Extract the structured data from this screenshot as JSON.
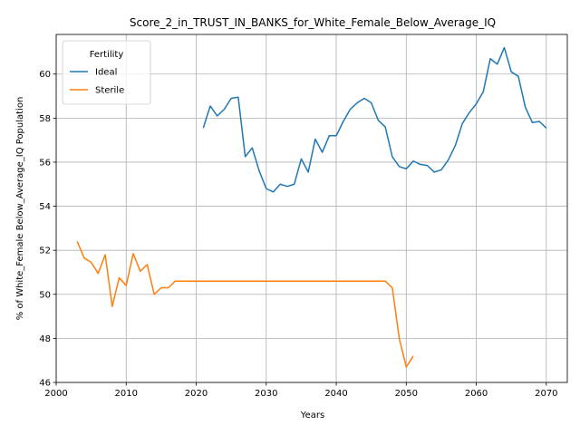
{
  "chart_data": {
    "type": "line",
    "title": "Score_2_in_TRUST_IN_BANKS_for_White_Female_Below_Average_IQ",
    "xlabel": "Years",
    "ylabel": "% of White_Female Below_Average_IQ Population",
    "xlim": [
      2000,
      2073
    ],
    "ylim": [
      46,
      61.8
    ],
    "xticks": [
      2000,
      2010,
      2020,
      2030,
      2040,
      2050,
      2060,
      2070
    ],
    "yticks": [
      46,
      48,
      50,
      52,
      54,
      56,
      58,
      60
    ],
    "grid": true,
    "legend": {
      "title": "Fertility",
      "placement": "upper-left"
    },
    "series": [
      {
        "name": "Ideal",
        "color": "#1f77b4",
        "x": [
          2021,
          2022,
          2023,
          2024,
          2025,
          2026,
          2027,
          2028,
          2029,
          2030,
          2031,
          2032,
          2033,
          2034,
          2035,
          2036,
          2037,
          2038,
          2039,
          2040,
          2041,
          2042,
          2043,
          2044,
          2045,
          2046,
          2047,
          2048,
          2049,
          2050,
          2051,
          2052,
          2053,
          2054,
          2055,
          2056,
          2057,
          2058,
          2059,
          2060,
          2061,
          2062,
          2063,
          2064,
          2065,
          2066,
          2067,
          2068,
          2069,
          2070
        ],
        "y": [
          57.55,
          58.55,
          58.1,
          58.4,
          58.9,
          58.95,
          56.25,
          56.65,
          55.6,
          54.8,
          54.65,
          55.0,
          54.9,
          55.0,
          56.15,
          55.55,
          57.05,
          56.45,
          57.2,
          57.2,
          57.85,
          58.4,
          58.7,
          58.9,
          58.7,
          57.9,
          57.6,
          56.25,
          55.8,
          55.7,
          56.05,
          55.9,
          55.85,
          55.55,
          55.65,
          56.1,
          56.75,
          57.75,
          58.25,
          58.65,
          59.2,
          60.7,
          60.45,
          61.2,
          60.1,
          59.9,
          58.5,
          57.8,
          57.85,
          57.55
        ]
      },
      {
        "name": "Sterile",
        "color": "#ff7f0e",
        "x": [
          2003,
          2004,
          2005,
          2006,
          2007,
          2008,
          2009,
          2010,
          2011,
          2012,
          2013,
          2014,
          2015,
          2016,
          2017,
          2018,
          2019,
          2020,
          2021,
          2022,
          2023,
          2024,
          2025,
          2026,
          2027,
          2028,
          2029,
          2030,
          2031,
          2032,
          2033,
          2034,
          2035,
          2036,
          2037,
          2038,
          2039,
          2040,
          2041,
          2042,
          2043,
          2044,
          2045,
          2046,
          2047,
          2048,
          2049,
          2050,
          2051
        ],
        "y": [
          52.4,
          51.65,
          51.45,
          50.95,
          51.8,
          49.45,
          50.75,
          50.4,
          51.85,
          51.05,
          51.35,
          50.0,
          50.3,
          50.3,
          50.6,
          50.6,
          50.6,
          50.6,
          50.6,
          50.6,
          50.6,
          50.6,
          50.6,
          50.6,
          50.6,
          50.6,
          50.6,
          50.6,
          50.6,
          50.6,
          50.6,
          50.6,
          50.6,
          50.6,
          50.6,
          50.6,
          50.6,
          50.6,
          50.6,
          50.6,
          50.6,
          50.6,
          50.6,
          50.6,
          50.6,
          50.3,
          48.0,
          46.7,
          47.2
        ]
      }
    ]
  }
}
